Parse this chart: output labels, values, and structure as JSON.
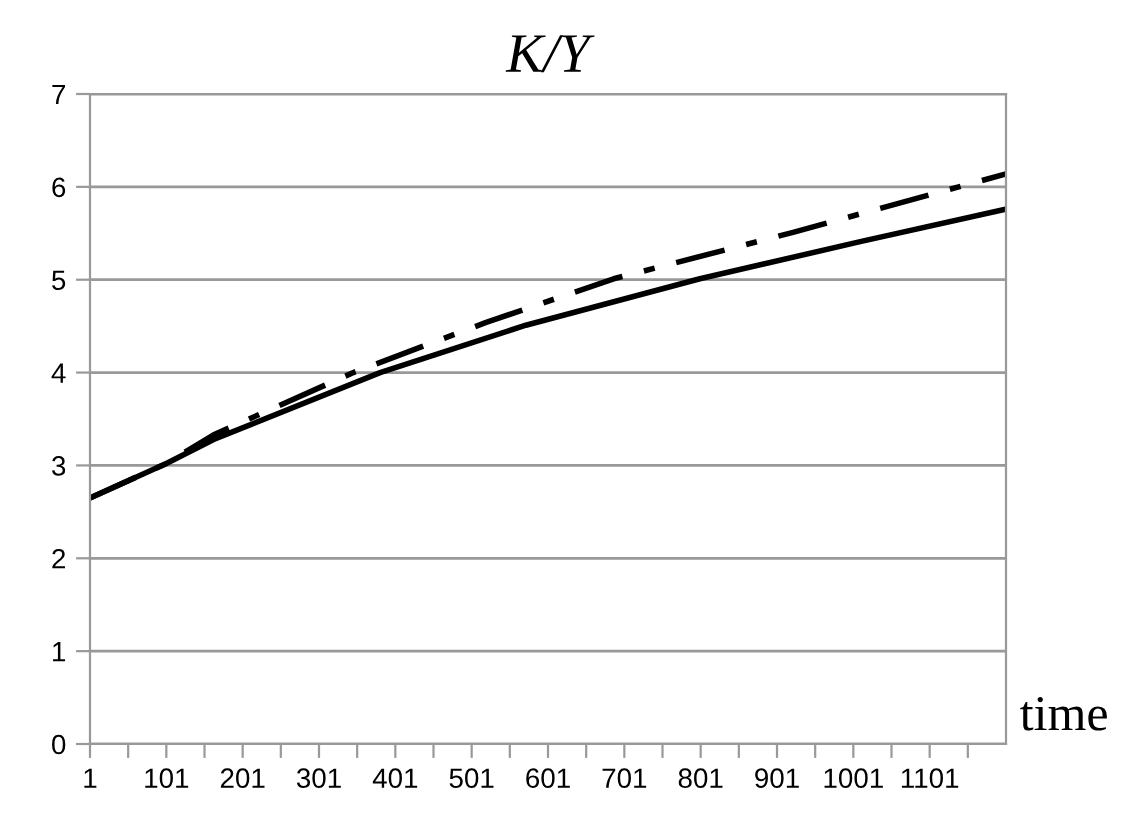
{
  "chart_data": {
    "type": "line",
    "title": "K/Y",
    "xlabel": "time",
    "xlim": [
      1,
      1201
    ],
    "xticks": [
      1,
      {
        "value": 51,
        "label": null
      },
      101,
      {
        "value": 151,
        "label": null
      },
      201,
      {
        "value": 251,
        "label": null
      },
      301,
      {
        "value": 351,
        "label": null
      },
      401,
      {
        "value": 451,
        "label": null
      },
      501,
      {
        "value": 551,
        "label": null
      },
      601,
      {
        "value": 651,
        "label": null
      },
      701,
      {
        "value": 751,
        "label": null
      },
      801,
      {
        "value": 851,
        "label": null
      },
      901,
      {
        "value": 951,
        "label": null
      },
      1001,
      {
        "value": 1051,
        "label": null
      },
      1101,
      {
        "value": 1151,
        "label": null
      }
    ],
    "ylim": [
      0,
      7
    ],
    "yticks": [
      0,
      1,
      2,
      3,
      4,
      5,
      6,
      7
    ],
    "grid": "y",
    "legend": false,
    "series": [
      {
        "color": "#000000",
        "line_style": "solid",
        "x": [
          1,
          101,
          163,
          381,
          572,
          800,
          1010,
          1201
        ],
        "values": [
          2.65,
          3.02,
          3.28,
          4.0,
          4.51,
          5.01,
          5.41,
          5.76
        ]
      },
      {
        "color": "#000000",
        "line_style": "dashed",
        "x": [
          1,
          101,
          163,
          346,
          520,
          687,
          922,
          1201
        ],
        "values": [
          2.65,
          3.02,
          3.33,
          4.0,
          4.54,
          5.01,
          5.51,
          6.14
        ]
      }
    ]
  }
}
